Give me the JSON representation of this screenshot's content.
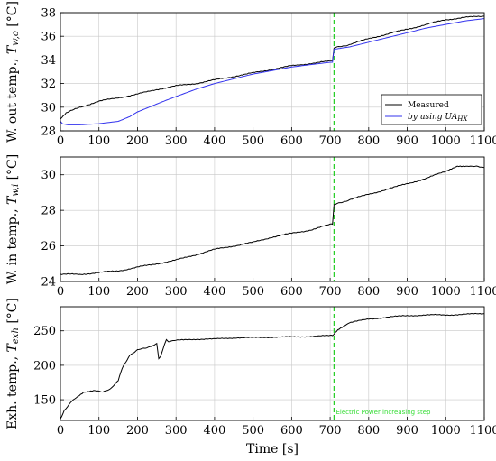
{
  "chart_data": [
    {
      "type": "line",
      "ylabel": "W. out temp., T_{w,o} [°C]",
      "xlabel": "",
      "xlim": [
        0,
        1100
      ],
      "ylim": [
        28,
        38
      ],
      "xticks": [
        0,
        100,
        200,
        300,
        400,
        500,
        600,
        700,
        800,
        900,
        1000,
        1100
      ],
      "yticks": [
        28,
        30,
        32,
        34,
        36,
        38
      ],
      "grid": true,
      "legend": "bottom-right",
      "vline": {
        "x": 710,
        "color": "#22cc22",
        "style": "dashed"
      },
      "series": [
        {
          "name": "Measured",
          "color": "#000000",
          "x": [
            0,
            15,
            50,
            100,
            150,
            200,
            250,
            300,
            350,
            400,
            450,
            500,
            550,
            600,
            650,
            700,
            706,
            710,
            750,
            800,
            850,
            900,
            950,
            1000,
            1050,
            1100
          ],
          "y": [
            29.0,
            29.5,
            30.0,
            30.5,
            30.8,
            31.1,
            31.5,
            31.8,
            32.0,
            32.3,
            32.6,
            32.9,
            33.2,
            33.5,
            33.7,
            33.9,
            33.9,
            35.0,
            35.3,
            35.8,
            36.2,
            36.6,
            37.0,
            37.4,
            37.6,
            37.7
          ]
        },
        {
          "name": "by using UA_{HX}",
          "color": "#3333ee",
          "x": [
            0,
            5,
            20,
            50,
            100,
            150,
            180,
            200,
            230,
            260,
            300,
            350,
            400,
            450,
            500,
            550,
            600,
            650,
            700,
            706,
            710,
            750,
            800,
            850,
            900,
            950,
            1000,
            1050,
            1100
          ],
          "y": [
            28.8,
            28.6,
            28.5,
            28.5,
            28.6,
            28.8,
            29.2,
            29.6,
            30.0,
            30.4,
            30.9,
            31.5,
            32.0,
            32.4,
            32.8,
            33.1,
            33.4,
            33.6,
            33.8,
            33.8,
            34.9,
            35.1,
            35.5,
            35.9,
            36.3,
            36.7,
            37.0,
            37.3,
            37.5
          ]
        }
      ]
    },
    {
      "type": "line",
      "ylabel": "W. in temp., T_{w,i} [°C]",
      "xlabel": "",
      "xlim": [
        0,
        1100
      ],
      "ylim": [
        24,
        31
      ],
      "xticks": [
        0,
        100,
        200,
        300,
        400,
        500,
        600,
        700,
        800,
        900,
        1000,
        1100
      ],
      "yticks": [
        24,
        26,
        28,
        30
      ],
      "grid": true,
      "vline": {
        "x": 710,
        "color": "#22cc22",
        "style": "dashed"
      },
      "series": [
        {
          "name": "",
          "color": "#000000",
          "x": [
            0,
            50,
            100,
            150,
            200,
            250,
            300,
            350,
            400,
            450,
            500,
            550,
            600,
            650,
            700,
            706,
            710,
            750,
            800,
            850,
            900,
            950,
            1000,
            1030,
            1060,
            1100
          ],
          "y": [
            24.4,
            24.4,
            24.5,
            24.6,
            24.8,
            25.0,
            25.2,
            25.5,
            25.8,
            26.0,
            26.2,
            26.5,
            26.7,
            26.9,
            27.2,
            27.2,
            28.3,
            28.6,
            28.9,
            29.2,
            29.5,
            29.8,
            30.2,
            30.5,
            30.5,
            30.4
          ]
        }
      ]
    },
    {
      "type": "line",
      "ylabel": "Exh. temp., T_{exh} [°C]",
      "xlabel": "Time [s]",
      "xlim": [
        0,
        1100
      ],
      "ylim": [
        120,
        285
      ],
      "xticks": [
        0,
        100,
        200,
        300,
        400,
        500,
        600,
        700,
        800,
        900,
        1000,
        1100
      ],
      "yticks": [
        150,
        200,
        250
      ],
      "grid": true,
      "vline": {
        "x": 710,
        "color": "#22cc22",
        "style": "dashed"
      },
      "annotation": {
        "text": "Electric Power increasing step",
        "x": 715
      },
      "series": [
        {
          "name": "",
          "color": "#000000",
          "x": [
            0,
            10,
            30,
            60,
            90,
            110,
            130,
            150,
            160,
            170,
            180,
            200,
            220,
            240,
            250,
            255,
            260,
            270,
            275,
            280,
            300,
            350,
            400,
            450,
            500,
            550,
            600,
            650,
            700,
            706,
            720,
            750,
            800,
            850,
            900,
            950,
            1000,
            1050,
            1100
          ],
          "y": [
            122,
            135,
            148,
            160,
            163,
            162,
            165,
            178,
            195,
            205,
            215,
            222,
            225,
            229,
            232,
            210,
            212,
            230,
            237,
            235,
            236,
            238,
            238,
            240,
            240,
            241,
            241,
            242,
            243,
            243,
            252,
            262,
            267,
            270,
            272,
            273,
            273,
            274,
            275
          ]
        }
      ]
    }
  ],
  "legend": {
    "items": [
      "Measured",
      "by using UA"
    ],
    "subscript": "HX"
  }
}
